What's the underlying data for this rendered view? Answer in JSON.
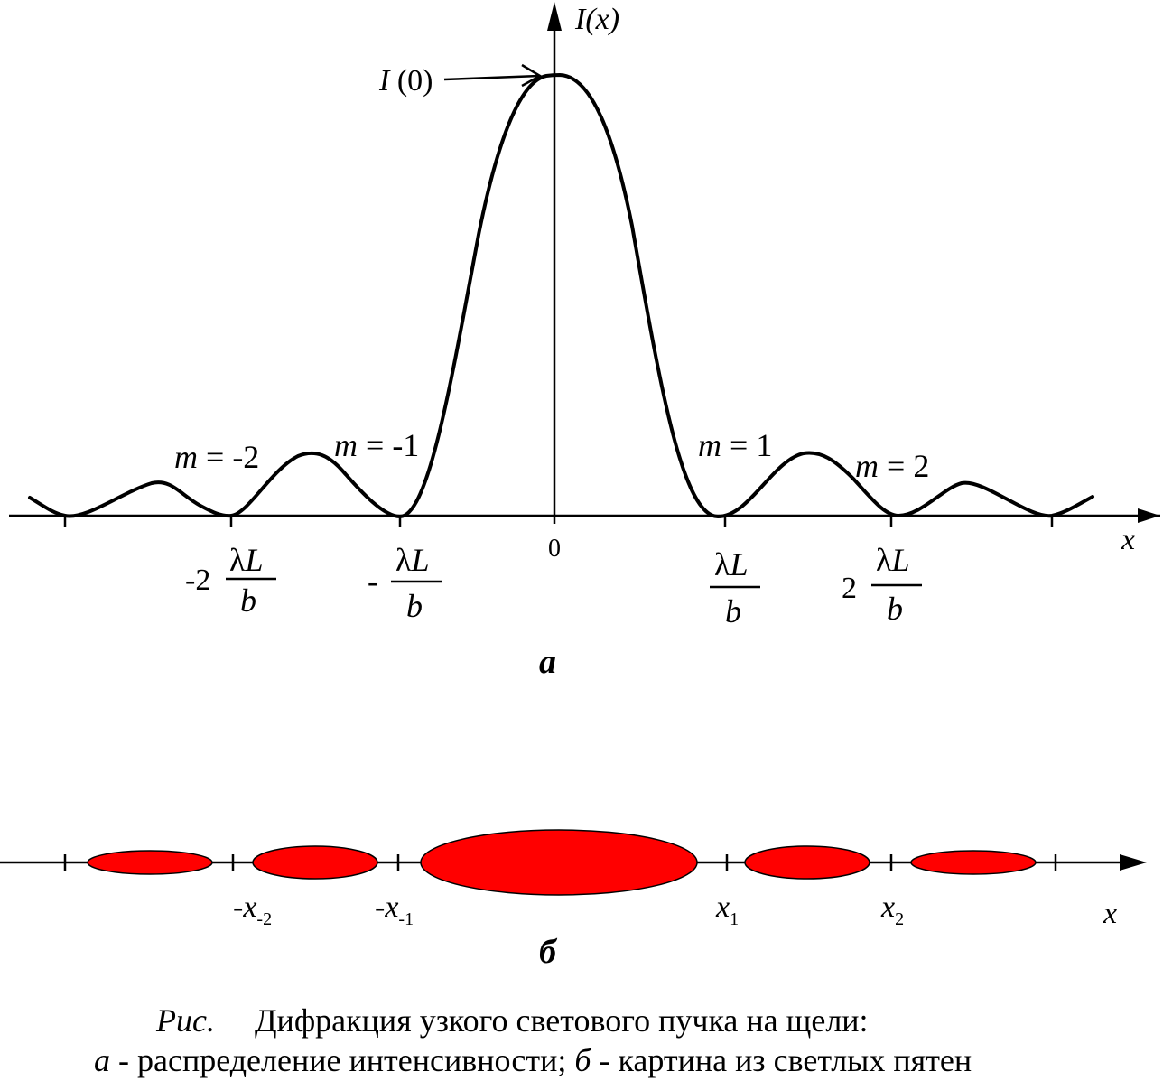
{
  "figure_a": {
    "y_axis_label": "I(x)",
    "x_axis_label": "x",
    "peak_label_italic": "I",
    "peak_label_rest": " (0)",
    "origin_label": "0",
    "sub_label": "а",
    "order_labels": [
      {
        "m": "m",
        "eq": " = ",
        "n": "-2"
      },
      {
        "m": "m",
        "eq": " = ",
        "n": "-1"
      },
      {
        "m": "m",
        "eq": " = ",
        "n": "1"
      },
      {
        "m": "m",
        "eq": " = ",
        "n": "2"
      }
    ],
    "tick_labels": [
      {
        "prefix": "-2",
        "num_greek": "λ",
        "num_var": "L",
        "den": "b"
      },
      {
        "prefix": "-",
        "num_greek": "λ",
        "num_var": "L",
        "den": "b"
      },
      {
        "prefix": "",
        "num_greek": "λ",
        "num_var": "L",
        "den": "b"
      },
      {
        "prefix": "2",
        "num_greek": "λ",
        "num_var": "L",
        "den": "b"
      }
    ]
  },
  "figure_b": {
    "x_axis_label": "x",
    "sub_label": "б",
    "spot_color": "#ff0000",
    "minimum_labels": [
      {
        "sign": "-",
        "var": "x",
        "sub": "-2"
      },
      {
        "sign": "-",
        "var": "x",
        "sub": "-1"
      },
      {
        "sign": "",
        "var": "x",
        "sub": "1"
      },
      {
        "sign": "",
        "var": "x",
        "sub": "2"
      }
    ]
  },
  "caption": {
    "line1_label": "Рис.",
    "line1_text": "Дифракция узкого светового пучка на щели:",
    "line2_a": "а",
    "line2_a_text": " - распределение интенсивности; ",
    "line2_b": "б",
    "line2_b_text": " - картина из светлых пятен"
  }
}
